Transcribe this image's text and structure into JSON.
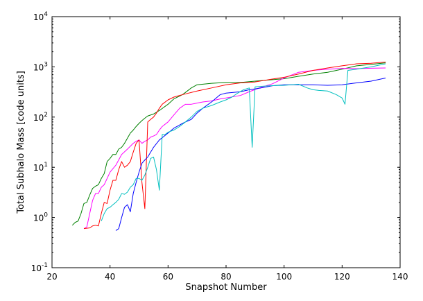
{
  "chart_data": {
    "type": "line",
    "title": "",
    "xlabel": "Snapshot Number",
    "ylabel": "Total Subhalo Mass [code units]",
    "xlim": [
      20,
      140
    ],
    "ylim": [
      0.1,
      10000
    ],
    "yscale": "log",
    "grid": false,
    "x_ticks": [
      20,
      40,
      60,
      80,
      100,
      120,
      140
    ],
    "y_ticks": [
      {
        "value": 0.1,
        "base": "10",
        "exp": "-1"
      },
      {
        "value": 1,
        "base": "10",
        "exp": "0"
      },
      {
        "value": 10,
        "base": "10",
        "exp": "1"
      },
      {
        "value": 100,
        "base": "10",
        "exp": "2"
      },
      {
        "value": 1000,
        "base": "10",
        "exp": "3"
      },
      {
        "value": 10000,
        "base": "10",
        "exp": "4"
      }
    ],
    "series": [
      {
        "color": "#008000",
        "points": [
          [
            27,
            0.7
          ],
          [
            28,
            0.8
          ],
          [
            29,
            0.85
          ],
          [
            30,
            1.2
          ],
          [
            31,
            1.9
          ],
          [
            32,
            2.0
          ],
          [
            33,
            2.8
          ],
          [
            34,
            3.8
          ],
          [
            35,
            4.2
          ],
          [
            36,
            4.5
          ],
          [
            37,
            6.0
          ],
          [
            38,
            7.5
          ],
          [
            39,
            13
          ],
          [
            40,
            15
          ],
          [
            41,
            18
          ],
          [
            42,
            18
          ],
          [
            43,
            23
          ],
          [
            44,
            25
          ],
          [
            45,
            30
          ],
          [
            46,
            38
          ],
          [
            47,
            48
          ],
          [
            48,
            55
          ],
          [
            49,
            65
          ],
          [
            50,
            75
          ],
          [
            51,
            85
          ],
          [
            52,
            95
          ],
          [
            53,
            105
          ],
          [
            55,
            115
          ],
          [
            57,
            135
          ],
          [
            60,
            180
          ],
          [
            62,
            230
          ],
          [
            65,
            280
          ],
          [
            68,
            380
          ],
          [
            70,
            440
          ],
          [
            75,
            470
          ],
          [
            80,
            490
          ],
          [
            85,
            490
          ],
          [
            90,
            520
          ],
          [
            95,
            550
          ],
          [
            100,
            580
          ],
          [
            105,
            650
          ],
          [
            110,
            720
          ],
          [
            115,
            780
          ],
          [
            120,
            900
          ],
          [
            125,
            1050
          ],
          [
            130,
            1120
          ],
          [
            135,
            1200
          ]
        ]
      },
      {
        "color": "#ff00ff",
        "points": [
          [
            31,
            0.6
          ],
          [
            32,
            0.65
          ],
          [
            33,
            1.2
          ],
          [
            34,
            2.2
          ],
          [
            35,
            3.0
          ],
          [
            36,
            3.0
          ],
          [
            37,
            4.0
          ],
          [
            38,
            4.5
          ],
          [
            40,
            8
          ],
          [
            42,
            11
          ],
          [
            44,
            18
          ],
          [
            46,
            23
          ],
          [
            48,
            30
          ],
          [
            49,
            33
          ],
          [
            50,
            35
          ],
          [
            51,
            30
          ],
          [
            52,
            33
          ],
          [
            53,
            35
          ],
          [
            54,
            40
          ],
          [
            55,
            42
          ],
          [
            56,
            45
          ],
          [
            57,
            55
          ],
          [
            58,
            65
          ],
          [
            60,
            80
          ],
          [
            62,
            110
          ],
          [
            64,
            150
          ],
          [
            66,
            180
          ],
          [
            68,
            180
          ],
          [
            70,
            190
          ],
          [
            72,
            200
          ],
          [
            75,
            210
          ],
          [
            78,
            230
          ],
          [
            80,
            240
          ],
          [
            85,
            270
          ],
          [
            88,
            320
          ],
          [
            92,
            390
          ],
          [
            96,
            460
          ],
          [
            100,
            600
          ],
          [
            105,
            780
          ],
          [
            110,
            850
          ],
          [
            115,
            900
          ],
          [
            120,
            930
          ],
          [
            125,
            920
          ],
          [
            130,
            940
          ],
          [
            135,
            950
          ]
        ]
      },
      {
        "color": "#ff0000",
        "points": [
          [
            31,
            0.6
          ],
          [
            33,
            0.62
          ],
          [
            34,
            0.68
          ],
          [
            35,
            0.7
          ],
          [
            36,
            0.68
          ],
          [
            37,
            1.2
          ],
          [
            38,
            2.0
          ],
          [
            39,
            1.9
          ],
          [
            40,
            3.5
          ],
          [
            41,
            5.5
          ],
          [
            42,
            5.5
          ],
          [
            43,
            9
          ],
          [
            44,
            13
          ],
          [
            45,
            10
          ],
          [
            46,
            11
          ],
          [
            47,
            13
          ],
          [
            48,
            20
          ],
          [
            49,
            30
          ],
          [
            50,
            35
          ],
          [
            51,
            5
          ],
          [
            52,
            1.5
          ],
          [
            53,
            80
          ],
          [
            54,
            90
          ],
          [
            55,
            100
          ],
          [
            56,
            120
          ],
          [
            57,
            150
          ],
          [
            58,
            180
          ],
          [
            60,
            220
          ],
          [
            62,
            250
          ],
          [
            65,
            280
          ],
          [
            70,
            330
          ],
          [
            75,
            380
          ],
          [
            80,
            440
          ],
          [
            85,
            480
          ],
          [
            90,
            500
          ],
          [
            95,
            560
          ],
          [
            100,
            620
          ],
          [
            105,
            720
          ],
          [
            110,
            850
          ],
          [
            115,
            950
          ],
          [
            120,
            1050
          ],
          [
            125,
            1150
          ],
          [
            130,
            1180
          ],
          [
            135,
            1250
          ]
        ]
      },
      {
        "color": "#0000ff",
        "points": [
          [
            42,
            0.55
          ],
          [
            43,
            0.6
          ],
          [
            44,
            1.0
          ],
          [
            45,
            1.6
          ],
          [
            46,
            1.8
          ],
          [
            47,
            1.3
          ],
          [
            48,
            3.0
          ],
          [
            49,
            5
          ],
          [
            50,
            8
          ],
          [
            51,
            12
          ],
          [
            52,
            14
          ],
          [
            53,
            16
          ],
          [
            54,
            20
          ],
          [
            55,
            25
          ],
          [
            57,
            35
          ],
          [
            60,
            48
          ],
          [
            62,
            60
          ],
          [
            65,
            75
          ],
          [
            68,
            90
          ],
          [
            70,
            120
          ],
          [
            72,
            150
          ],
          [
            75,
            200
          ],
          [
            78,
            280
          ],
          [
            80,
            300
          ],
          [
            85,
            320
          ],
          [
            88,
            350
          ],
          [
            92,
            380
          ],
          [
            96,
            420
          ],
          [
            100,
            440
          ],
          [
            110,
            440
          ],
          [
            115,
            430
          ],
          [
            120,
            440
          ],
          [
            125,
            480
          ],
          [
            130,
            520
          ],
          [
            135,
            600
          ]
        ]
      },
      {
        "color": "#00bfbf",
        "points": [
          [
            37,
            0.85
          ],
          [
            38,
            1.2
          ],
          [
            39,
            1.5
          ],
          [
            40,
            1.6
          ],
          [
            41,
            1.8
          ],
          [
            42,
            2.0
          ],
          [
            43,
            2.3
          ],
          [
            44,
            3.0
          ],
          [
            45,
            2.9
          ],
          [
            46,
            3.2
          ],
          [
            47,
            4.0
          ],
          [
            48,
            4.5
          ],
          [
            49,
            6
          ],
          [
            50,
            6
          ],
          [
            51,
            5.5
          ],
          [
            52,
            7
          ],
          [
            53,
            10
          ],
          [
            54,
            15
          ],
          [
            55,
            16
          ],
          [
            56,
            9
          ],
          [
            57,
            3.5
          ],
          [
            58,
            45
          ],
          [
            59,
            45
          ],
          [
            60,
            50
          ],
          [
            62,
            55
          ],
          [
            64,
            65
          ],
          [
            66,
            80
          ],
          [
            68,
            100
          ],
          [
            70,
            130
          ],
          [
            72,
            150
          ],
          [
            75,
            170
          ],
          [
            78,
            200
          ],
          [
            80,
            220
          ],
          [
            82,
            250
          ],
          [
            84,
            300
          ],
          [
            86,
            350
          ],
          [
            88,
            380
          ],
          [
            89,
            25
          ],
          [
            90,
            400
          ],
          [
            95,
            420
          ],
          [
            100,
            430
          ],
          [
            105,
            450
          ],
          [
            108,
            380
          ],
          [
            110,
            350
          ],
          [
            112,
            340
          ],
          [
            115,
            330
          ],
          [
            118,
            280
          ],
          [
            120,
            240
          ],
          [
            121,
            180
          ],
          [
            122,
            850
          ],
          [
            125,
            900
          ],
          [
            130,
            1000
          ],
          [
            135,
            1150
          ]
        ]
      }
    ]
  }
}
